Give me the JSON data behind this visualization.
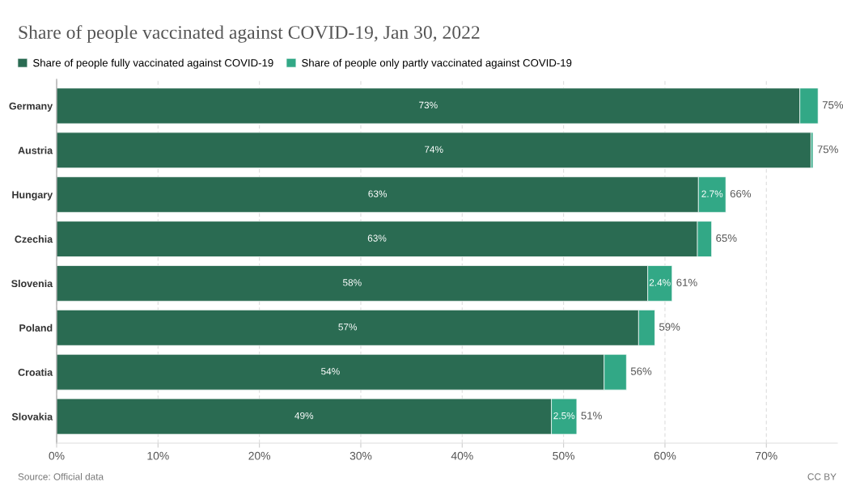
{
  "chart_data": {
    "type": "bar",
    "orientation": "horizontal",
    "stacked": true,
    "title": "Share of people vaccinated against COVID-19, Jan 30, 2022",
    "categories": [
      "Germany",
      "Austria",
      "Hungary",
      "Czechia",
      "Slovenia",
      "Poland",
      "Croatia",
      "Slovakia"
    ],
    "series": [
      {
        "name": "Share of people fully vaccinated against COVID-19",
        "color": "#2a6b52",
        "values": [
          73.3,
          74.4,
          63.3,
          63.2,
          58.3,
          57.4,
          54.0,
          48.8
        ],
        "value_labels": [
          "73%",
          "74%",
          "63%",
          "63%",
          "58%",
          "57%",
          "54%",
          "49%"
        ]
      },
      {
        "name": "Share of people only partly vaccinated against COVID-19",
        "color": "#32a886",
        "values": [
          1.8,
          0.2,
          2.7,
          1.4,
          2.4,
          1.6,
          2.2,
          2.5
        ],
        "value_labels": [
          null,
          null,
          "2.7%",
          null,
          "2.4%",
          null,
          null,
          "2.5%"
        ]
      }
    ],
    "totals": [
      "75%",
      "75%",
      "66%",
      "65%",
      "61%",
      "59%",
      "56%",
      "51%"
    ],
    "xlim": [
      0,
      77
    ],
    "xticks": [
      {
        "value": 0,
        "label": "0%"
      },
      {
        "value": 10,
        "label": "10%"
      },
      {
        "value": 20,
        "label": "20%"
      },
      {
        "value": 30,
        "label": "30%"
      },
      {
        "value": 40,
        "label": "40%"
      },
      {
        "value": 50,
        "label": "50%"
      },
      {
        "value": 60,
        "label": "60%"
      },
      {
        "value": 70,
        "label": "70%"
      }
    ],
    "grid": "x",
    "legend": "top left",
    "annotations": [
      "Source: Official data",
      "CC BY"
    ]
  }
}
